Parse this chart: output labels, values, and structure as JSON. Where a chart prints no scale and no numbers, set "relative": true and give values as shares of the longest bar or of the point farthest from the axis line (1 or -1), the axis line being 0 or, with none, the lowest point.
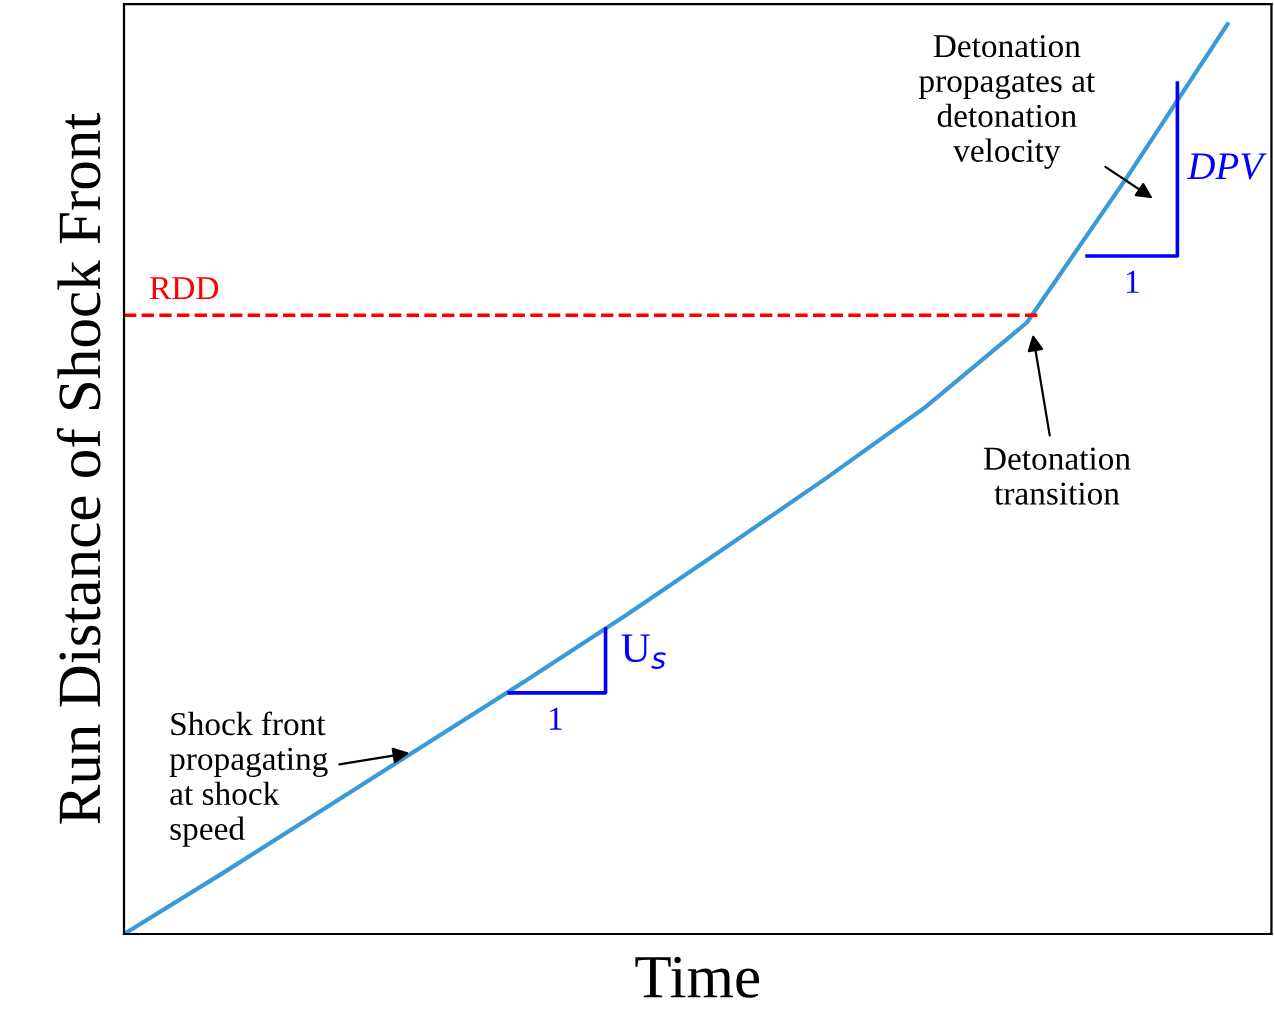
{
  "chart_data": {
    "type": "line",
    "relative": true,
    "xlabel": "Time",
    "ylabel": "Run Distance of Shock Front",
    "categories": [
      null,
      null,
      null,
      null,
      null,
      null,
      null,
      null,
      null,
      null,
      null,
      null
    ],
    "series": [
      {
        "color": "#3a9ad9",
        "values": [
          0,
          0.068,
          0.138,
          0.208,
          0.278,
          0.35,
          0.425,
          0.501,
          0.58,
          0.672,
          0.832,
          1
        ]
      }
    ],
    "ref_lines": [
      {
        "axis": "y",
        "value": 0.68,
        "label": "RDD",
        "color": "#ff0000",
        "line_style": "dashed"
      }
    ],
    "annotations": [
      "Shock front\npropagating\nat shock\nspeed",
      "Detonation\ntransition",
      "Detonation\npropagates at\ndetonation\nvelocity",
      "U$_{s}$",
      "1",
      "DPV",
      "1"
    ],
    "grid": false
  }
}
